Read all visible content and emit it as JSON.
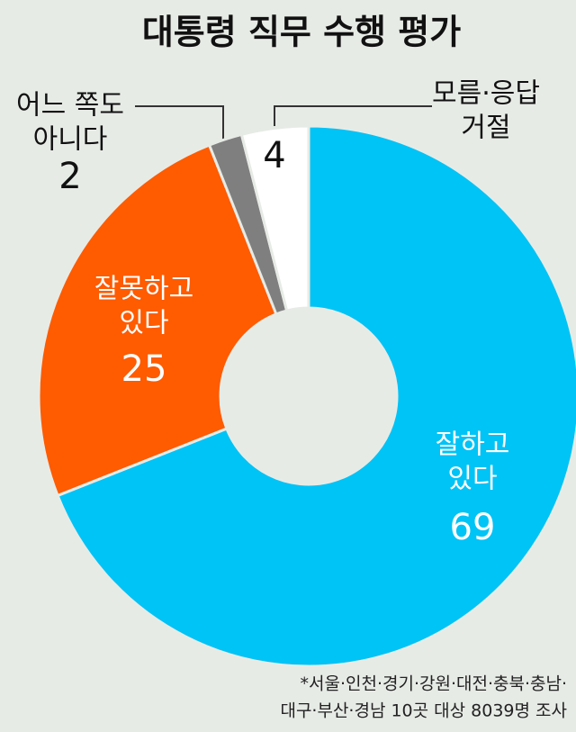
{
  "chart_data": {
    "type": "donut",
    "title": "대통령 직무 수행 평가",
    "categories": [
      [
        "잘하고",
        "있다"
      ],
      [
        "잘못하고",
        "있다"
      ],
      [
        "어느 쪽도",
        "아니다"
      ],
      [
        "모름·응답",
        "거절"
      ]
    ],
    "values": [
      69,
      25,
      2,
      4
    ],
    "colors": [
      "#00c3f6",
      "#ff5b00",
      "#7f7f7f",
      "#ffffff"
    ],
    "footnote": [
      "*서울·인천·경기·강원·대전·충북·충남·",
      "대구·부산·경남 10곳 대상 8039명 조사"
    ]
  }
}
